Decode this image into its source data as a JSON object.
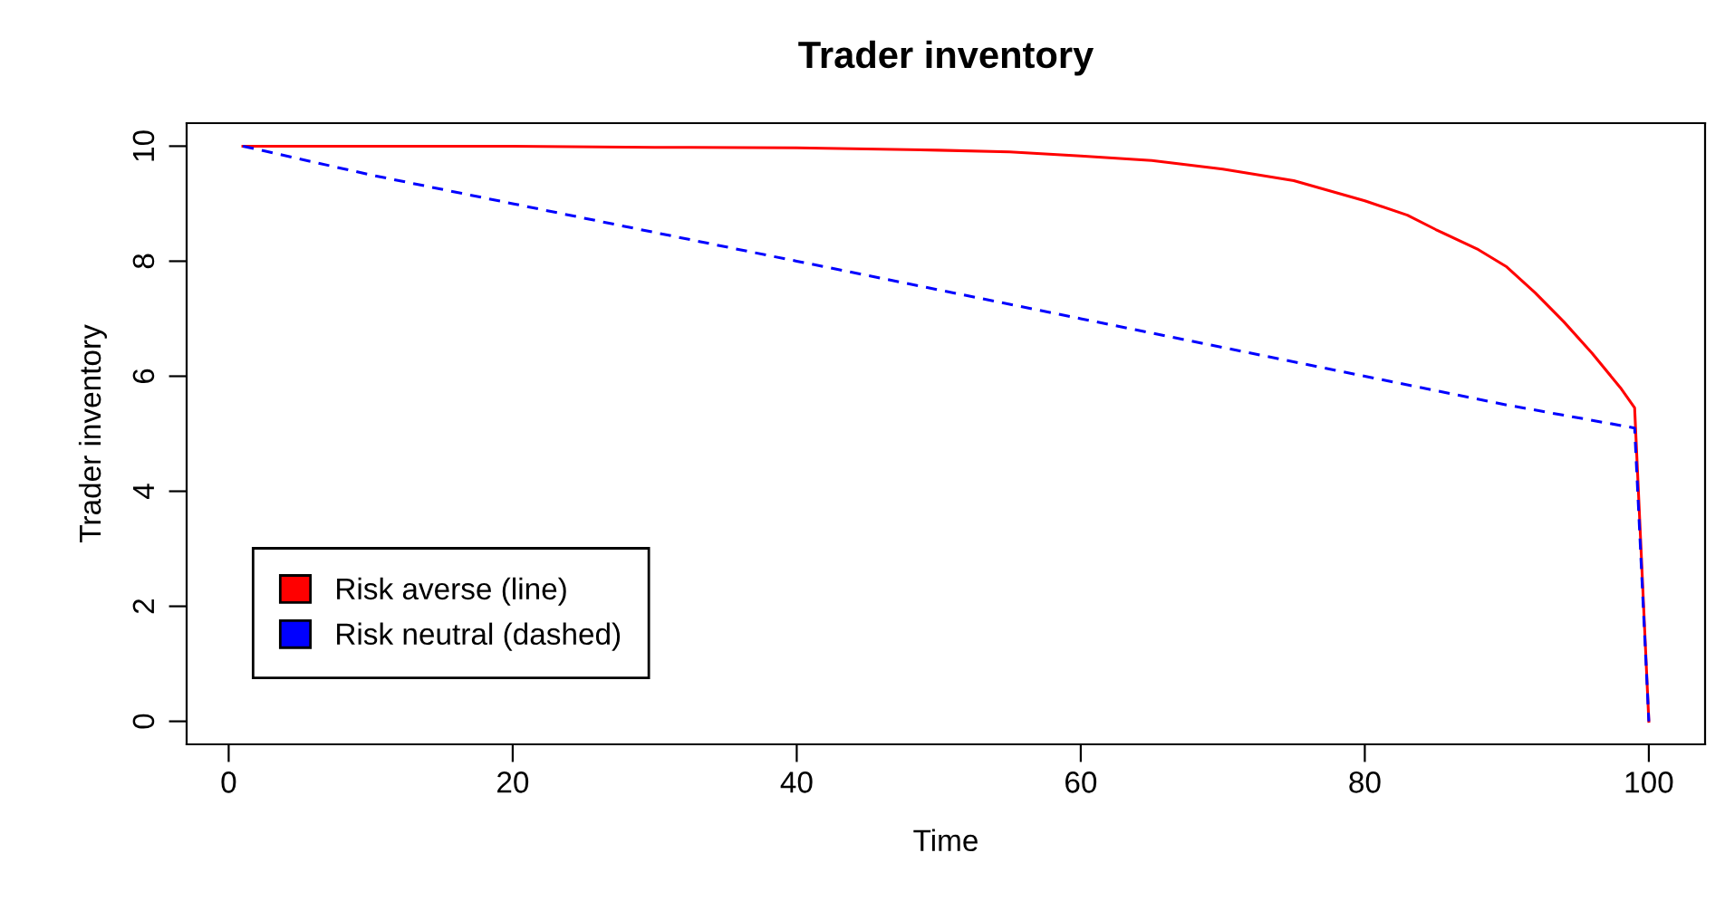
{
  "chart_data": {
    "type": "line",
    "title": "Trader inventory",
    "xlabel": "Time",
    "ylabel": "Trader inventory",
    "xlim": [
      -2.96,
      103.96
    ],
    "ylim": [
      -0.4,
      10.4
    ],
    "xticks": [
      0,
      20,
      40,
      60,
      80,
      100
    ],
    "yticks": [
      0,
      2,
      4,
      6,
      8,
      10
    ],
    "grid": false,
    "legend": "bottom left",
    "series": [
      {
        "name": "Risk averse (line)",
        "color": "#ff0000",
        "line_style": "solid",
        "x": [
          1,
          20,
          30,
          40,
          50,
          55,
          60,
          65,
          70,
          75,
          80,
          83,
          85,
          88,
          90,
          92,
          94,
          96,
          98,
          99,
          100
        ],
        "values": [
          10,
          10,
          9.98,
          9.97,
          9.93,
          9.9,
          9.83,
          9.75,
          9.6,
          9.4,
          9.05,
          8.8,
          8.55,
          8.2,
          7.9,
          7.45,
          6.95,
          6.4,
          5.8,
          5.45,
          0
        ]
      },
      {
        "name": "Risk neutral (dashed)",
        "color": "#0000ff",
        "line_style": "dashed",
        "x": [
          1,
          10,
          20,
          30,
          40,
          50,
          60,
          70,
          80,
          90,
          99,
          100
        ],
        "values": [
          10,
          9.5,
          9.0,
          8.5,
          8.0,
          7.5,
          7.0,
          6.5,
          6.0,
          5.5,
          5.1,
          0
        ]
      }
    ]
  }
}
